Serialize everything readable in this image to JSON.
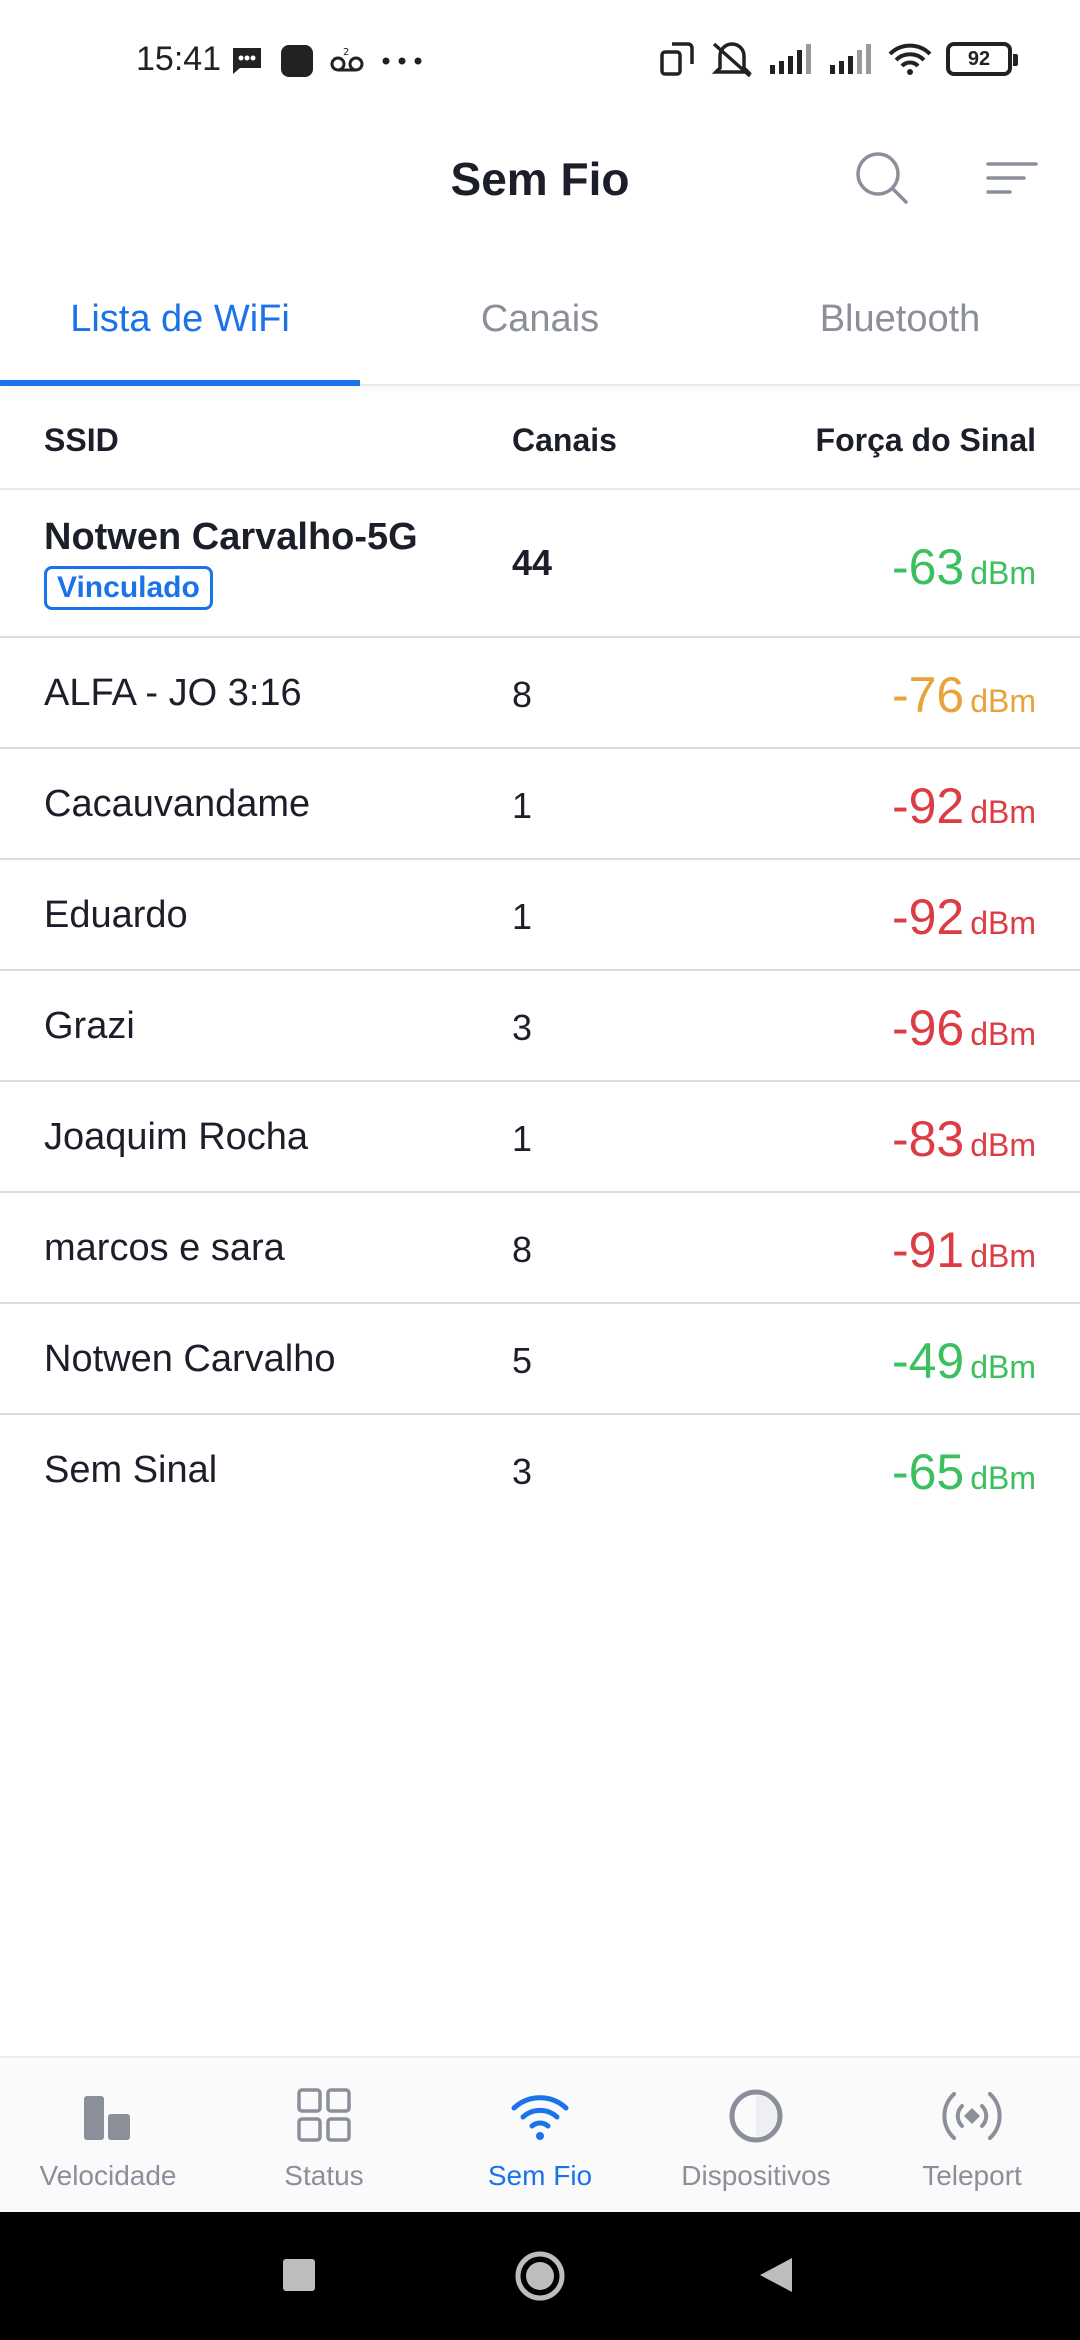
{
  "status_bar": {
    "time": "15:41",
    "battery": "92",
    "icons_left": [
      "message-icon",
      "app-icon",
      "voicemail-icon",
      "more-icon"
    ],
    "icons_right": [
      "rotate-icon",
      "mute-icon",
      "signal-icon",
      "signal-icon",
      "wifi-icon",
      "battery-icon"
    ]
  },
  "header": {
    "title": "Sem Fio",
    "icons": [
      "search-icon",
      "filter-icon"
    ]
  },
  "tabs": [
    {
      "label": "Lista de WiFi",
      "active": true
    },
    {
      "label": "Canais",
      "active": false
    },
    {
      "label": "Bluetooth",
      "active": false
    }
  ],
  "table": {
    "headers": {
      "ssid": "SSID",
      "channels": "Canais",
      "signal": "Força do Sinal"
    },
    "unit": "dBm",
    "rows": [
      {
        "ssid": "Notwen Carvalho-5G",
        "badge": "Vinculado",
        "channel": "44",
        "signal": "-63",
        "color": "#3cbf5e"
      },
      {
        "ssid": "ALFA - JO 3:16",
        "channel": "8",
        "signal": "-76",
        "color": "#e8a33a"
      },
      {
        "ssid": "Cacauvandame",
        "channel": "1",
        "signal": "-92",
        "color": "#dc3d45"
      },
      {
        "ssid": "Eduardo",
        "channel": "1",
        "signal": "-92",
        "color": "#dc3d45"
      },
      {
        "ssid": "Grazi",
        "channel": "3",
        "signal": "-96",
        "color": "#dc3d45"
      },
      {
        "ssid": "Joaquim Rocha",
        "channel": "1",
        "signal": "-83",
        "color": "#dc3d45"
      },
      {
        "ssid": "marcos e sara",
        "channel": "8",
        "signal": "-91",
        "color": "#dc3d45"
      },
      {
        "ssid": "Notwen Carvalho",
        "channel": "5",
        "signal": "-49",
        "color": "#3cbf5e"
      },
      {
        "ssid": "Sem Sinal",
        "channel": "3",
        "signal": "-65",
        "color": "#3cbf5e"
      }
    ]
  },
  "bottom_nav": [
    {
      "label": "Velocidade",
      "icon": "speed-bars-icon",
      "active": false
    },
    {
      "label": "Status",
      "icon": "grid-icon",
      "active": false
    },
    {
      "label": "Sem Fio",
      "icon": "wifi-icon",
      "active": true
    },
    {
      "label": "Dispositivos",
      "icon": "devices-circle-icon",
      "active": false
    },
    {
      "label": "Teleport",
      "icon": "teleport-icon",
      "active": false
    }
  ],
  "system_nav": {
    "icons": [
      "recents-icon",
      "home-icon",
      "back-icon"
    ]
  },
  "colors": {
    "accent": "#1a73e8",
    "good": "#3cbf5e",
    "fair": "#e8a33a",
    "poor": "#dc3d45"
  }
}
